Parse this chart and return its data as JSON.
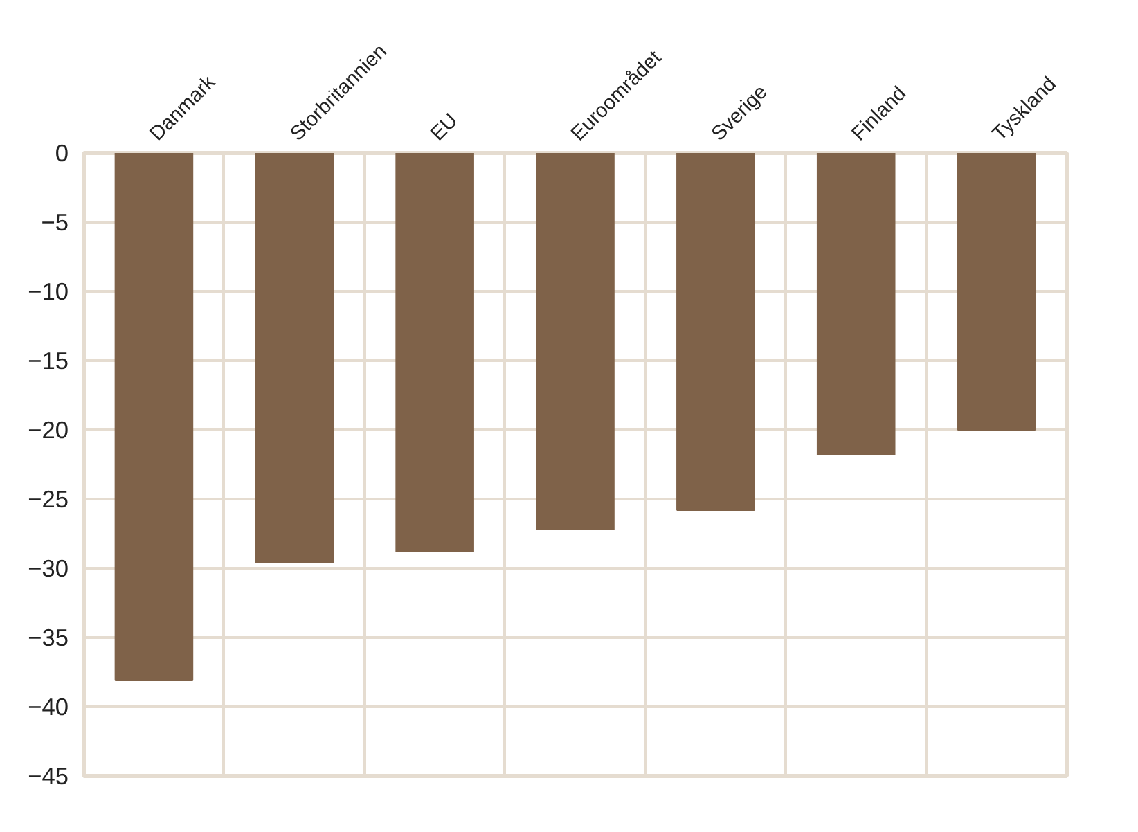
{
  "chart_data": {
    "type": "bar",
    "categories": [
      "Danmark",
      "Storbritannien",
      "EU",
      "Euroområdet",
      "Sverige",
      "Finland",
      "Tyskland"
    ],
    "values": [
      -38.1,
      -29.6,
      -28.8,
      -27.2,
      -25.8,
      -21.8,
      -20.0
    ],
    "color": "#7f6249",
    "ylim": [
      -45,
      0
    ],
    "yticks": [
      0,
      -5,
      -10,
      -15,
      -20,
      -25,
      -30,
      -35,
      -40,
      -45
    ],
    "grid": true
  }
}
